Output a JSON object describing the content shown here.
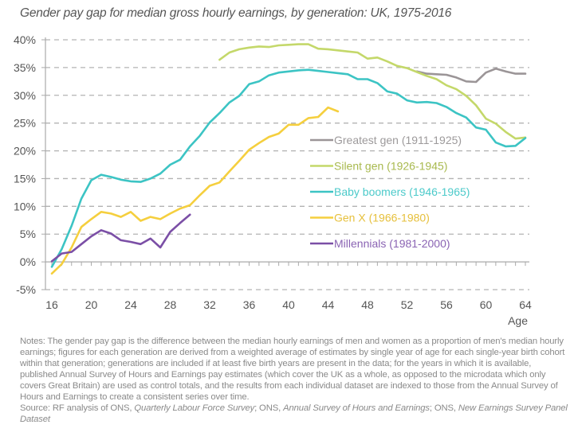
{
  "chart_data": {
    "type": "line",
    "title": "Gender pay gap for median gross hourly earnings, by generation: UK, 1975-2016",
    "xlabel": "Age",
    "ylabel": "",
    "xlim": [
      16,
      64
    ],
    "ylim": [
      -5,
      40
    ],
    "x_ticks": [
      16,
      20,
      24,
      28,
      32,
      36,
      40,
      44,
      48,
      52,
      56,
      60,
      64
    ],
    "y_ticks": [
      -5,
      0,
      5,
      10,
      15,
      20,
      25,
      30,
      35,
      40
    ],
    "y_tick_labels": [
      "-5%",
      "0%",
      "5%",
      "10%",
      "15%",
      "20%",
      "25%",
      "30%",
      "35%",
      "40%"
    ],
    "grid": "horizontal dashed",
    "legend_position": "center-right",
    "series": [
      {
        "name": "Greatest gen (1911-1925)",
        "color": "#9b9597",
        "text_color": "#9d9a9b",
        "start_age": 53,
        "values": [
          34.3,
          33.9,
          33.8,
          33.7,
          33.2,
          32.5,
          32.4,
          34.1,
          34.8,
          34.3,
          33.9,
          33.9
        ]
      },
      {
        "name": "Silent gen (1926-1945)",
        "color": "#c4d86a",
        "text_color": "#a8b94e",
        "start_age": 33,
        "values": [
          36.4,
          37.7,
          38.3,
          38.6,
          38.8,
          38.7,
          39.0,
          39.1,
          39.2,
          39.2,
          38.4,
          38.3,
          38.1,
          37.9,
          37.7,
          36.6,
          36.8,
          36.1,
          35.3,
          34.9,
          34.2,
          33.5,
          32.9,
          31.8,
          31.1,
          29.9,
          28.2,
          25.8,
          24.9,
          23.4,
          22.2,
          22.4
        ]
      },
      {
        "name": "Baby boomers (1946-1965)",
        "color": "#3cc4c4",
        "text_color": "#4ccaca",
        "start_age": 16,
        "values": [
          -0.9,
          2.3,
          6.5,
          11.4,
          14.7,
          15.7,
          15.3,
          14.8,
          14.5,
          14.4,
          15.0,
          15.9,
          17.5,
          18.4,
          20.8,
          22.7,
          25.1,
          26.8,
          28.7,
          29.9,
          32.0,
          32.5,
          33.6,
          34.1,
          34.3,
          34.5,
          34.6,
          34.4,
          34.2,
          34.0,
          33.8,
          32.9,
          32.9,
          32.2,
          30.7,
          30.3,
          29.1,
          28.7,
          28.8,
          28.6,
          27.9,
          26.8,
          26.0,
          24.2,
          23.8,
          21.5,
          20.8,
          20.9,
          22.3
        ]
      },
      {
        "name": "Gen X (1966-1980)",
        "color": "#f5cf3e",
        "text_color": "#e6c03c",
        "start_age": 16,
        "values": [
          -2.1,
          -0.4,
          2.6,
          6.3,
          7.7,
          9.0,
          8.7,
          8.1,
          9.0,
          7.4,
          8.1,
          7.7,
          8.7,
          9.6,
          10.2,
          12.0,
          13.7,
          14.3,
          16.3,
          18.2,
          20.2,
          21.4,
          22.5,
          23.1,
          24.7,
          24.7,
          25.9,
          26.1,
          27.8,
          27.1
        ]
      },
      {
        "name": "Millennials (1981-2000)",
        "color": "#7b4fa6",
        "text_color": "#8a63b3",
        "start_age": 16,
        "values": [
          0.1,
          1.5,
          1.8,
          3.2,
          4.6,
          5.7,
          5.1,
          3.9,
          3.6,
          3.2,
          4.2,
          2.6,
          5.4,
          7.0,
          8.5
        ]
      }
    ]
  },
  "notes": {
    "text": "Notes: The gender pay gap is the difference between the median hourly earnings of men and women as a proportion of men's median hourly earnings; figures for each generation are derived from a weighted average of estimates by single year of age for each single-year birth cohort within that generation; generations are included if at least five birth years are present in the data; for the years in which it is available, published Annual Survey of Hours and Earnings pay estimates (which cover the UK as a whole, as opposed to the microdata which only covers Great Britain) are used as control totals, and the results from each individual dataset are indexed to those from the Annual Survey of Hours and Earnings to create a consistent series over time.",
    "source_prefix": "Source: RF analysis of ONS, ",
    "source_1": "Quarterly Labour Force Survey",
    "source_sep_1": "; ONS, ",
    "source_2": "Annual Survey of Hours and Earnings",
    "source_sep_2": "; ONS, ",
    "source_3": "New Earnings Survey Panel Dataset"
  },
  "colors": {
    "axis_text": "#555555",
    "grid": "#b3b3b3",
    "axis_line": "#aaaaaa",
    "notes_text": "#8a8a8a"
  }
}
